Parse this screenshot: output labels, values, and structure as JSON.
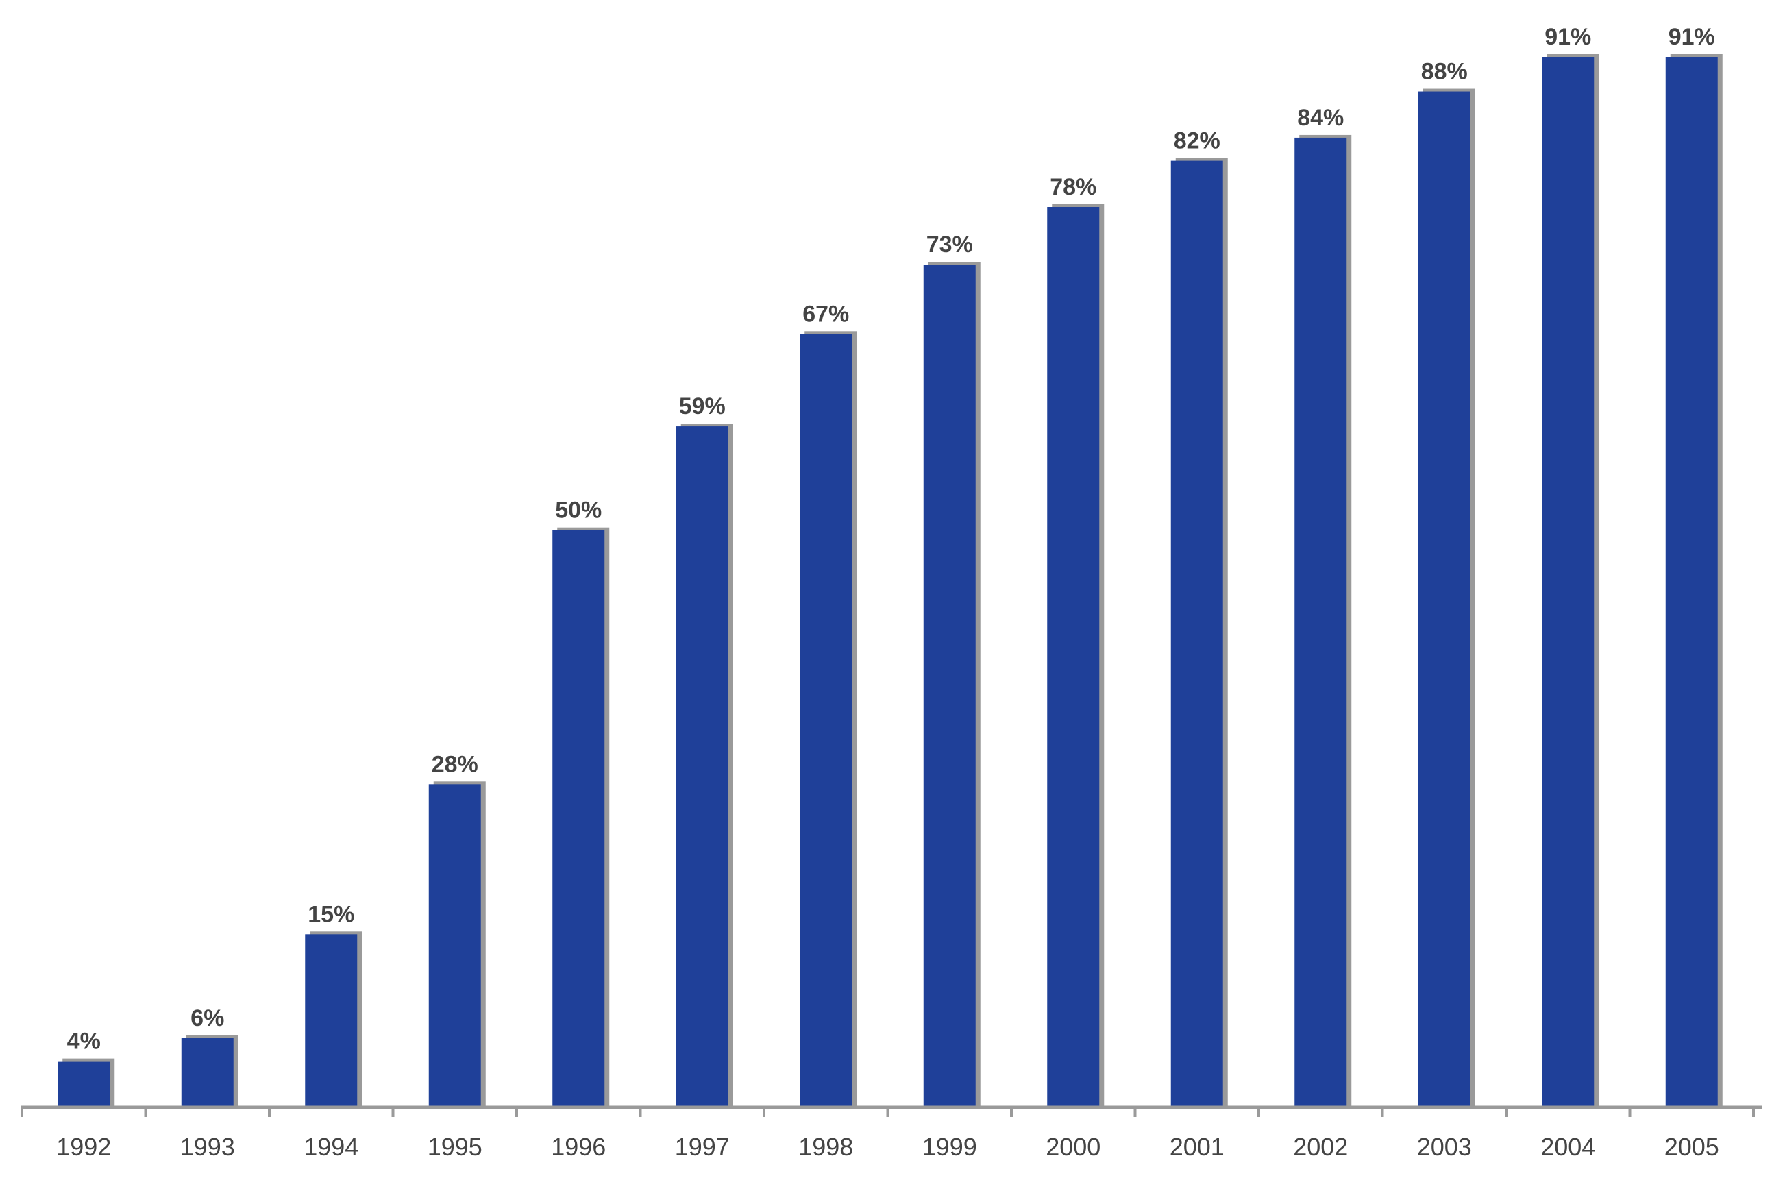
{
  "chart_data": {
    "type": "bar",
    "categories": [
      "1992",
      "1993",
      "1994",
      "1995",
      "1996",
      "1997",
      "1998",
      "1999",
      "2000",
      "2001",
      "2002",
      "2003",
      "2004",
      "2005"
    ],
    "values": [
      4,
      6,
      15,
      28,
      50,
      59,
      67,
      73,
      78,
      82,
      84,
      88,
      91,
      91
    ],
    "data_labels": [
      "4%",
      "6%",
      "15%",
      "28%",
      "50%",
      "59%",
      "67%",
      "73%",
      "78%",
      "82%",
      "84%",
      "88%",
      "91%",
      "91%"
    ],
    "title": "",
    "xlabel": "",
    "ylabel": "",
    "ylim": [
      0,
      91
    ],
    "grid": false,
    "legend": "none",
    "colors": {
      "bar": "#1f4099",
      "bar_shadow": "#9a9a9a",
      "axis": "#9a9a9a",
      "text": "#444444"
    }
  }
}
